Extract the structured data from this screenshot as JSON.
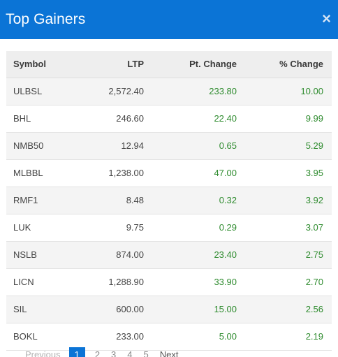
{
  "modal": {
    "title": "Top Gainers",
    "close_label": "×"
  },
  "table": {
    "headers": {
      "symbol": "Symbol",
      "ltp": "LTP",
      "pt_change": "Pt. Change",
      "pct_change": "% Change"
    },
    "rows": [
      {
        "symbol": "ULBSL",
        "ltp": "2,572.40",
        "pt_change": "233.80",
        "pct_change": "10.00"
      },
      {
        "symbol": "BHL",
        "ltp": "246.60",
        "pt_change": "22.40",
        "pct_change": "9.99"
      },
      {
        "symbol": "NMB50",
        "ltp": "12.94",
        "pt_change": "0.65",
        "pct_change": "5.29"
      },
      {
        "symbol": "MLBBL",
        "ltp": "1,238.00",
        "pt_change": "47.00",
        "pct_change": "3.95"
      },
      {
        "symbol": "RMF1",
        "ltp": "8.48",
        "pt_change": "0.32",
        "pct_change": "3.92"
      },
      {
        "symbol": "LUK",
        "ltp": "9.75",
        "pt_change": "0.29",
        "pct_change": "3.07"
      },
      {
        "symbol": "NSLB",
        "ltp": "874.00",
        "pt_change": "23.40",
        "pct_change": "2.75"
      },
      {
        "symbol": "LICN",
        "ltp": "1,288.90",
        "pt_change": "33.90",
        "pct_change": "2.70"
      },
      {
        "symbol": "SIL",
        "ltp": "600.00",
        "pt_change": "15.00",
        "pct_change": "2.56"
      },
      {
        "symbol": "BOKL",
        "ltp": "233.00",
        "pt_change": "5.00",
        "pct_change": "2.19"
      }
    ]
  },
  "pagination": {
    "previous": "Previous",
    "pages": [
      "1",
      "2",
      "3",
      "4",
      "5"
    ],
    "active_page": "1",
    "next": "Next"
  },
  "colors": {
    "header_bg": "#0b74d6",
    "positive": "#2e8b2e"
  }
}
